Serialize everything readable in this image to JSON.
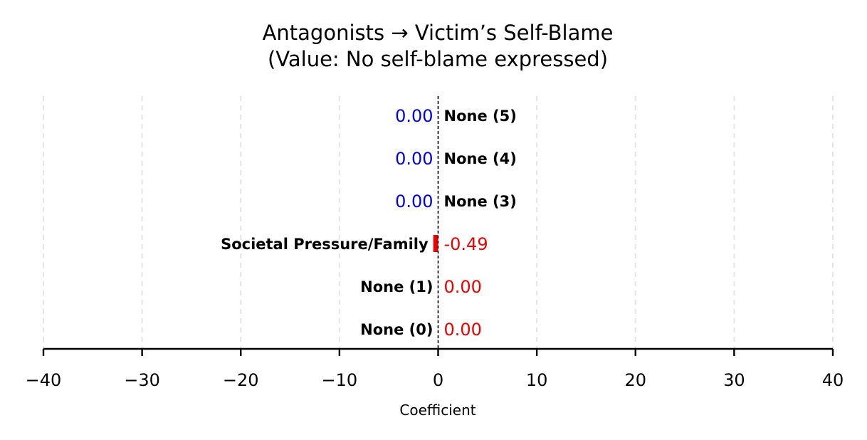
{
  "chart_data": {
    "type": "bar",
    "orientation": "horizontal",
    "title": "Antagonists → Victim’s Self-Blame",
    "subtitle": "(Value: No self-blame expressed)",
    "xlabel": "Coefficient",
    "ylabel": "",
    "xlim": [
      -40,
      40
    ],
    "xticks": [
      -40,
      -30,
      -20,
      -10,
      0,
      10,
      20,
      30,
      40
    ],
    "xtick_labels": [
      "−40",
      "−30",
      "−20",
      "−10",
      "0",
      "10",
      "20",
      "30",
      "40"
    ],
    "grid": "vertical-dashed",
    "reference_line": 0,
    "categories": [
      "None (0)",
      "None (1)",
      "Societal Pressure/Family",
      "None (3)",
      "None (4)",
      "None (5)"
    ],
    "values": [
      0.0,
      0.0,
      -0.49,
      0.0,
      0.0,
      0.0
    ],
    "value_labels": [
      "0.00",
      "0.00",
      "-0.49",
      "0.00",
      "0.00",
      "0.00"
    ],
    "value_label_colors": [
      "#ee0000",
      "#ee0000",
      "#ee0000",
      "#0000ee",
      "#0000ee",
      "#0000ee"
    ],
    "bar_color": "#ee0000",
    "grid_color": "#e6e6e6"
  }
}
